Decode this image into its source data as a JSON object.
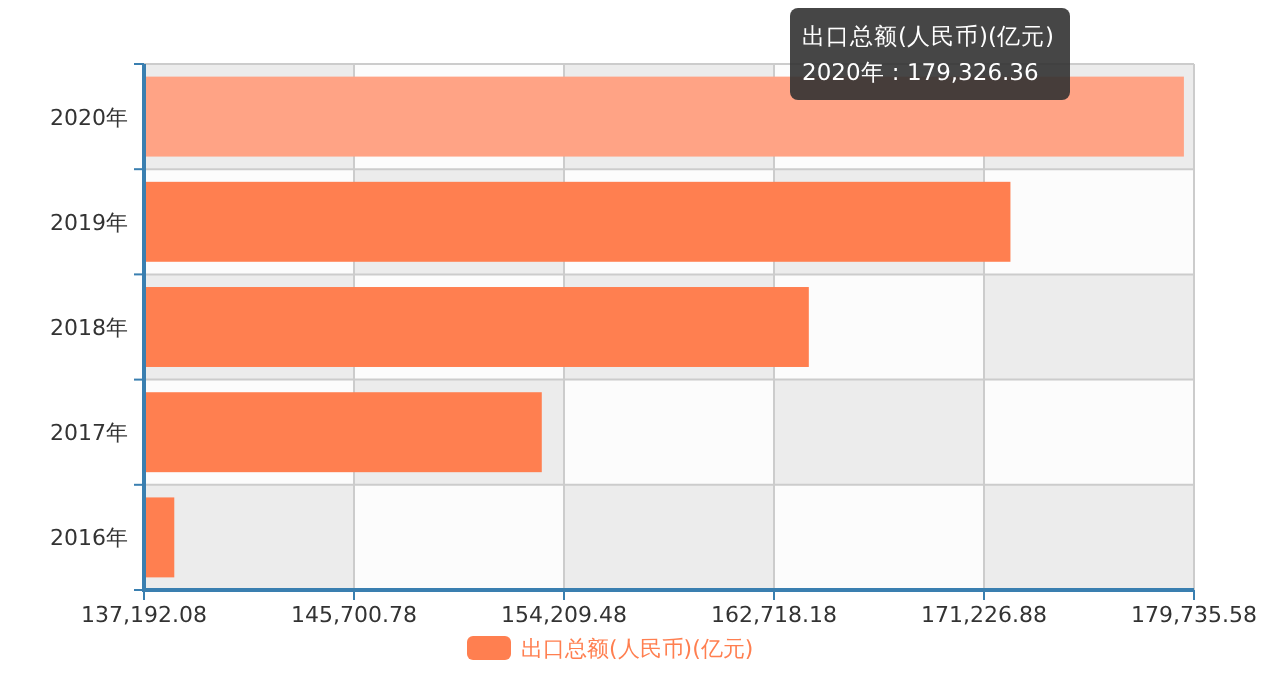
{
  "chart_data": {
    "type": "bar",
    "orientation": "horizontal",
    "categories": [
      "2020年",
      "2019年",
      "2018年",
      "2017年",
      "2016年"
    ],
    "series": [
      {
        "name": "出口总额(人民币)(亿元)",
        "color": "#ff7f50",
        "colors": [
          "#ffa385",
          "#ff7f50",
          "#ff7f50",
          "#ff7f50",
          "#ff7f50"
        ],
        "values": [
          179326.36,
          172298,
          164129,
          153309,
          138419
        ]
      }
    ],
    "xlim": [
      137192.08,
      179735.58
    ],
    "xticks": [
      {
        "value": 137192.08,
        "label": "137,192.08"
      },
      {
        "value": 145700.78,
        "label": "145,700.78"
      },
      {
        "value": 154209.48,
        "label": "154,209.48"
      },
      {
        "value": 162718.18,
        "label": "162,718.18"
      },
      {
        "value": 171226.88,
        "label": "171,226.88"
      },
      {
        "value": 179735.58,
        "label": "179,735.58"
      }
    ],
    "grid": true,
    "legend": "bottom",
    "annotations": [
      "出口总额(人民币)(亿元)",
      "2020年 : 179,326.36"
    ]
  }
}
